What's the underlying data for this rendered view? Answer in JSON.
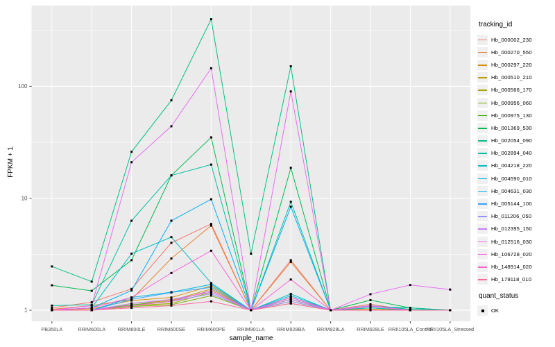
{
  "chart_data": {
    "type": "line",
    "title": "",
    "xlabel": "sample_name",
    "ylabel": "FPKM + 1",
    "y_scale": "log10",
    "ylim": [
      0.8,
      530
    ],
    "grid": true,
    "panel_bg": "#EBEBEB",
    "grid_color": "#FFFFFF",
    "point_color": "#000000",
    "point_shape": "filled-square",
    "tick_label_color": "#4D4D4D",
    "y_ticks": [
      {
        "label": "1",
        "value": 1
      },
      {
        "label": "10",
        "value": 10
      },
      {
        "label": "100",
        "value": 100
      }
    ],
    "y_minor_ticks": [
      3.1623,
      31.623,
      316.23
    ],
    "x_categories": [
      "PB350LA",
      "RRIM600LA",
      "RRIM600LE",
      "RRIM600SE",
      "RRIM600PE",
      "RRIM901LA",
      "RRIM928BA",
      "RRIM928LA",
      "RRIM928LE",
      "RRII105LA_Control",
      "RRII105LA_Stressed"
    ],
    "legend": {
      "tracking_title": "tracking_id",
      "quant_title": "quant_status",
      "quant_value": "OK"
    },
    "series": [
      {
        "name": "Hb_000002_230",
        "color": "#F8766D",
        "values": [
          1.05,
          1.18,
          1.55,
          4.0,
          5.9,
          1.0,
          2.8,
          1.0,
          1.13,
          1.0,
          1.0
        ]
      },
      {
        "name": "Hb_000270_550",
        "color": "#EA8331",
        "values": [
          1.02,
          1.1,
          1.25,
          2.9,
          5.7,
          1.0,
          2.7,
          1.0,
          1.1,
          1.0,
          1.0
        ]
      },
      {
        "name": "Hb_000297_220",
        "color": "#D89000",
        "values": [
          1.0,
          1.03,
          1.22,
          1.3,
          1.65,
          1.0,
          1.3,
          1.0,
          1.02,
          1.0,
          1.0
        ]
      },
      {
        "name": "Hb_000510_210",
        "color": "#C09B00",
        "values": [
          1.0,
          1.0,
          1.15,
          1.22,
          1.55,
          1.0,
          1.25,
          1.0,
          1.0,
          1.0,
          1.0
        ]
      },
      {
        "name": "Hb_000566_170",
        "color": "#A3A500",
        "values": [
          1.0,
          1.0,
          1.1,
          1.15,
          1.45,
          1.0,
          1.2,
          1.0,
          1.0,
          1.0,
          1.0
        ]
      },
      {
        "name": "Hb_000956_060",
        "color": "#7CAE00",
        "values": [
          1.0,
          1.0,
          1.08,
          1.12,
          1.35,
          1.0,
          1.15,
          1.0,
          1.0,
          1.0,
          1.0
        ]
      },
      {
        "name": "Hb_000975_130",
        "color": "#39B600",
        "values": [
          1.0,
          1.0,
          1.12,
          1.2,
          1.5,
          1.0,
          1.25,
          1.0,
          1.05,
          1.0,
          1.0
        ]
      },
      {
        "name": "Hb_001369_530",
        "color": "#00BB4E",
        "values": [
          1.67,
          1.49,
          2.8,
          16.0,
          35.0,
          1.0,
          18.7,
          1.0,
          1.23,
          1.05,
          1.0
        ]
      },
      {
        "name": "Hb_002054_090",
        "color": "#00C087",
        "values": [
          2.46,
          1.8,
          26.0,
          75.0,
          398.0,
          3.2,
          151.0,
          1.0,
          1.1,
          1.02,
          1.0
        ]
      },
      {
        "name": "Hb_002894_040",
        "color": "#00C1A3",
        "values": [
          1.1,
          1.12,
          6.3,
          16.0,
          20.0,
          1.0,
          9.3,
          1.0,
          1.08,
          1.05,
          1.0
        ]
      },
      {
        "name": "Hb_004218_220",
        "color": "#00BFC4",
        "values": [
          1.0,
          1.05,
          3.2,
          4.5,
          1.75,
          1.0,
          1.4,
          1.0,
          1.05,
          1.0,
          1.0
        ]
      },
      {
        "name": "Hb_004590_010",
        "color": "#00BAE0",
        "values": [
          1.0,
          1.0,
          1.3,
          1.45,
          1.7,
          1.0,
          1.35,
          1.0,
          1.0,
          1.0,
          1.0
        ]
      },
      {
        "name": "Hb_004631_030",
        "color": "#00B0F6",
        "values": [
          1.0,
          1.05,
          1.5,
          6.3,
          9.8,
          1.0,
          8.4,
          1.0,
          1.0,
          1.0,
          1.0
        ]
      },
      {
        "name": "Hb_005144_100",
        "color": "#35A2FF",
        "values": [
          1.0,
          1.0,
          1.25,
          1.44,
          1.6,
          1.0,
          1.3,
          1.0,
          1.0,
          1.0,
          1.0
        ]
      },
      {
        "name": "Hb_011206_050",
        "color": "#9590FF",
        "values": [
          1.0,
          1.0,
          1.1,
          1.2,
          1.4,
          1.0,
          1.2,
          1.0,
          1.0,
          1.0,
          1.0
        ]
      },
      {
        "name": "Hb_012395_150",
        "color": "#C77CFF",
        "values": [
          1.0,
          1.0,
          1.15,
          1.25,
          1.45,
          1.0,
          1.25,
          1.0,
          1.1,
          1.0,
          1.0
        ]
      },
      {
        "name": "Hb_012516_030",
        "color": "#E76BF3",
        "values": [
          1.0,
          1.1,
          21.0,
          44.0,
          145.0,
          1.0,
          90.0,
          1.0,
          1.39,
          1.68,
          1.53
        ]
      },
      {
        "name": "Hb_106728_020",
        "color": "#FA62DB",
        "values": [
          1.0,
          1.05,
          1.3,
          2.15,
          3.4,
          1.0,
          1.88,
          1.0,
          1.08,
          1.0,
          1.0
        ]
      },
      {
        "name": "Hb_148914_020",
        "color": "#FF61C9",
        "values": [
          1.0,
          1.0,
          1.1,
          1.2,
          1.5,
          1.0,
          1.3,
          1.0,
          1.0,
          1.0,
          1.0
        ]
      },
      {
        "name": "Hb_179118_010",
        "color": "#FF689E",
        "values": [
          1.0,
          1.0,
          1.05,
          1.1,
          1.2,
          1.0,
          1.15,
          1.0,
          1.0,
          1.0,
          1.0
        ]
      }
    ]
  }
}
